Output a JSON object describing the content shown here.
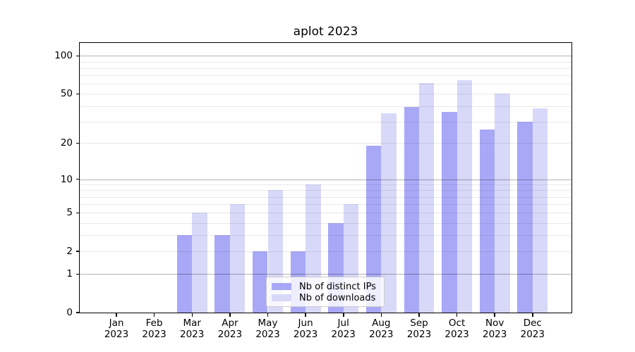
{
  "chart_data": {
    "type": "bar",
    "title": "aplot 2023",
    "categories": [
      {
        "month": "Jan",
        "year": "2023"
      },
      {
        "month": "Feb",
        "year": "2023"
      },
      {
        "month": "Mar",
        "year": "2023"
      },
      {
        "month": "Apr",
        "year": "2023"
      },
      {
        "month": "May",
        "year": "2023"
      },
      {
        "month": "Jun",
        "year": "2023"
      },
      {
        "month": "Jul",
        "year": "2023"
      },
      {
        "month": "Aug",
        "year": "2023"
      },
      {
        "month": "Sep",
        "year": "2023"
      },
      {
        "month": "Oct",
        "year": "2023"
      },
      {
        "month": "Nov",
        "year": "2023"
      },
      {
        "month": "Dec",
        "year": "2023"
      }
    ],
    "series": [
      {
        "name": "Nb of distinct IPs",
        "color": "#a8a8f7",
        "values": [
          0,
          0,
          3,
          3,
          2,
          2,
          4,
          19,
          39,
          36,
          26,
          30
        ]
      },
      {
        "name": "Nb of downloads",
        "color": "#d8d8f9",
        "values": [
          0,
          0,
          5,
          6,
          8,
          9,
          6,
          35,
          61,
          64,
          50,
          38
        ]
      }
    ],
    "y_axis": {
      "scale": "log1p-base10",
      "ylim": [
        0,
        126
      ],
      "tick_values": [
        0,
        1,
        2,
        5,
        10,
        20,
        50,
        100
      ],
      "tick_labels": [
        "0",
        "1",
        "2",
        "5",
        "10",
        "20",
        "50",
        "100"
      ]
    },
    "gridlines": {
      "light_values": [
        2,
        3,
        4,
        5,
        6,
        7,
        8,
        9,
        20,
        30,
        40,
        50,
        60,
        70,
        80,
        90
      ],
      "dark_values": [
        1,
        10,
        100
      ]
    },
    "legend": {
      "position": "lower center",
      "labels": [
        "Nb of distinct IPs",
        "Nb of downloads"
      ]
    },
    "colors": {
      "distinct_ips": "#a8a8f7",
      "downloads": "#d8d8f9",
      "grid_light": "#e9e9e9",
      "grid_dark": "#b2b2b2",
      "spine": "#000000",
      "text": "#000000"
    }
  }
}
